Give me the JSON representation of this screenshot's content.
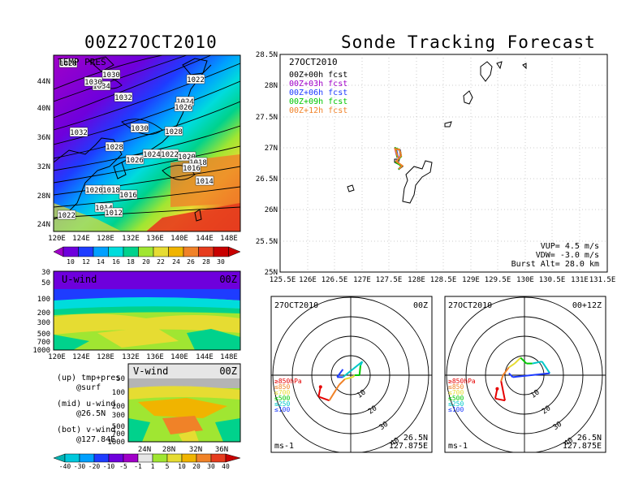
{
  "left_title": "00Z27OCT2010",
  "right_title": "Sonde Tracking Forecast",
  "temp_panel": {
    "label": "TEMP PRES",
    "y_ticks": [
      "44N",
      "40N",
      "36N",
      "32N",
      "28N",
      "24N"
    ],
    "x_ticks": [
      "120E",
      "124E",
      "128E",
      "132E",
      "136E",
      "140E",
      "144E",
      "148E"
    ],
    "colorbar": [
      "10",
      "12",
      "14",
      "16",
      "18",
      "20",
      "22",
      "24",
      "26",
      "28",
      "30"
    ],
    "colorbar_colors": [
      "#a000c8",
      "#6e00dc",
      "#1e3cff",
      "#00a0ff",
      "#00dcdc",
      "#00d28c",
      "#a0e632",
      "#e6dc32",
      "#f0b400",
      "#f08228",
      "#e63c1e",
      "#c80000"
    ],
    "isobar_labels": [
      "1028",
      "1030",
      "1034",
      "1030",
      "1032",
      "1022",
      "1032",
      "1030",
      "1024",
      "1026",
      "1028",
      "1028",
      "1026",
      "1024",
      "1022",
      "1020",
      "1018",
      "1016",
      "1014",
      "1020",
      "1018",
      "1016",
      "1014",
      "1012",
      "1022"
    ]
  },
  "uwind_panel": {
    "label": "U-wind",
    "time": "00Z",
    "y_ticks": [
      "30",
      "50",
      "100",
      "200",
      "300",
      "500",
      "700",
      "1000"
    ],
    "x_ticks": [
      "120E",
      "124E",
      "128E",
      "132E",
      "136E",
      "140E",
      "144E",
      "148E"
    ]
  },
  "vwind_panel": {
    "label": "V-wind",
    "time": "00Z",
    "y_ticks": [
      "50",
      "100",
      "200",
      "300",
      "500",
      "700",
      "1000"
    ],
    "x_ticks": [
      "24N",
      "28N",
      "32N",
      "36N"
    ],
    "colorbar": [
      "-40",
      "-30",
      "-20",
      "-10",
      "-5",
      "-1",
      "1",
      "5",
      "10",
      "20",
      "30",
      "40"
    ],
    "colorbar_colors": [
      "#00b4b4",
      "#00c8dc",
      "#00a0ff",
      "#1e3cff",
      "#6e00dc",
      "#a000c8",
      "#e6e6e6",
      "#a0e632",
      "#e6dc32",
      "#f0b400",
      "#f08228",
      "#e63c1e",
      "#c80000"
    ]
  },
  "legend_text": {
    "up": "(up) tmp+pres",
    "up2": "@surf",
    "mid": "(mid) u-wind",
    "mid2": "@26.5N",
    "bot": "(bot) v-wind",
    "bot2": "@127.84E"
  },
  "map_panel": {
    "date": "27OCT2010",
    "y_ticks": [
      "28.5N",
      "28N",
      "27.5N",
      "27N",
      "26.5N",
      "26N",
      "25.5N",
      "25N"
    ],
    "x_ticks": [
      "125.5E",
      "126E",
      "126.5E",
      "127E",
      "127.5E",
      "128E",
      "128.5E",
      "129E",
      "129.5E",
      "130E",
      "130.5E",
      "131E",
      "131.5E"
    ],
    "forecasts": [
      {
        "label": "00Z+00h fcst",
        "color": "#000000"
      },
      {
        "label": "00Z+03h fcst",
        "color": "#a000c8"
      },
      {
        "label": "00Z+06h fcst",
        "color": "#1e3cff"
      },
      {
        "label": "00Z+09h fcst",
        "color": "#00c800"
      },
      {
        "label": "00Z+12h fcst",
        "color": "#f08228"
      }
    ],
    "vup": "VUP= 4.5 m/s",
    "vdw": "VDW= -3.0 m/s",
    "burst": "Burst Alt= 28.0 km"
  },
  "hodo1": {
    "date": "27OCT2010",
    "time": "00Z",
    "lat": "26.5N",
    "lon": "127.875E",
    "unit": "ms-1"
  },
  "hodo2": {
    "date": "27OCT2010",
    "time": "00+12Z",
    "lat": "26.5N",
    "lon": "127.875E",
    "unit": "ms-1"
  },
  "hodo_levels": [
    {
      "label": "≥850hPa",
      "color": "#e60000"
    },
    {
      "label": "≤850",
      "color": "#f08228"
    },
    {
      "label": "≤700",
      "color": "#e6dc32"
    },
    {
      "label": "≤500",
      "color": "#00c800"
    },
    {
      "label": "≤250",
      "color": "#00c8c8"
    },
    {
      "label": "≤100",
      "color": "#1e3cff"
    }
  ],
  "ring_labels": [
    "10",
    "20",
    "30",
    "40"
  ],
  "chart_data": [
    {
      "type": "heatmap",
      "title": "00Z27OCT2010",
      "subtitle": "TEMP PRES",
      "xlabel": "",
      "ylabel": "",
      "x_ticks": [
        "120E",
        "124E",
        "128E",
        "132E",
        "136E",
        "140E",
        "144E",
        "148E"
      ],
      "y_ticks": [
        "24N",
        "28N",
        "32N",
        "36N",
        "40N",
        "44N"
      ],
      "colorbar": [
        10,
        12,
        14,
        16,
        18,
        20,
        22,
        24,
        26,
        28,
        30
      ],
      "contours": [
        1012,
        1014,
        1016,
        1018,
        1020,
        1022,
        1024,
        1026,
        1028,
        1030,
        1032,
        1034
      ]
    },
    {
      "type": "heatmap",
      "title": "U-wind",
      "xlabel": "",
      "ylabel": "",
      "x_ticks": [
        "120E",
        "124E",
        "128E",
        "132E",
        "136E",
        "140E",
        "144E",
        "148E"
      ],
      "y_ticks": [
        30,
        50,
        100,
        200,
        300,
        500,
        700,
        1000
      ]
    },
    {
      "type": "heatmap",
      "title": "V-wind",
      "xlabel": "",
      "ylabel": "",
      "x_ticks": [
        "24N",
        "28N",
        "32N",
        "36N"
      ],
      "y_ticks": [
        50,
        100,
        200,
        300,
        500,
        700,
        1000
      ],
      "colorbar": [
        -40,
        -30,
        -20,
        -10,
        -5,
        -1,
        1,
        5,
        10,
        20,
        30,
        40
      ]
    },
    {
      "type": "line",
      "title": "Sonde Tracking Forecast",
      "xlabel": "",
      "ylabel": "",
      "xlim": [
        125.5,
        131.5
      ],
      "ylim": [
        25,
        28.5
      ],
      "series": [
        {
          "name": "00Z+00h fcst",
          "x": [
            127.66,
            127.62,
            127.7,
            127.72,
            127.63,
            127.74,
            127.68
          ],
          "y": [
            26.85,
            26.99,
            26.96,
            26.86,
            26.78,
            26.7,
            26.66
          ]
        },
        {
          "name": "00Z+03h fcst",
          "x": [
            127.65,
            127.61,
            127.69,
            127.71,
            127.62,
            127.73,
            127.67
          ],
          "y": [
            26.84,
            26.98,
            26.97,
            26.87,
            26.77,
            26.71,
            26.65
          ]
        },
        {
          "name": "00Z+06h fcst",
          "x": [
            127.66,
            127.63,
            127.7,
            127.71,
            127.63,
            127.73,
            127.68
          ],
          "y": [
            26.85,
            26.98,
            26.96,
            26.86,
            26.78,
            26.71,
            26.66
          ]
        },
        {
          "name": "00Z+09h fcst",
          "x": [
            127.65,
            127.62,
            127.69,
            127.72,
            127.62,
            127.73,
            127.67
          ],
          "y": [
            26.84,
            26.99,
            26.97,
            26.86,
            26.77,
            26.7,
            26.65
          ]
        },
        {
          "name": "00Z+12h fcst",
          "x": [
            127.66,
            127.61,
            127.69,
            127.72,
            127.63,
            127.74,
            127.68
          ],
          "y": [
            26.85,
            26.98,
            26.97,
            26.87,
            26.78,
            26.71,
            26.66
          ]
        }
      ]
    },
    {
      "type": "line",
      "title": "27OCT2010 00Z",
      "xlabel": "ms-1",
      "ylabel": "",
      "rings": [
        10,
        20,
        30,
        40
      ],
      "series": [
        {
          "name": "hodograph",
          "u": [
            -15.5,
            -16.5,
            -11,
            -6,
            -3,
            1,
            2,
            4.5,
            5,
            6,
            -4,
            -7,
            -4
          ],
          "v": [
            -6,
            -11,
            -13,
            -5,
            -2,
            -1,
            0,
            0,
            5,
            7,
            -1,
            -1,
            3
          ]
        }
      ]
    },
    {
      "type": "line",
      "title": "27OCT2010 00+12Z",
      "xlabel": "ms-1",
      "ylabel": "",
      "rings": [
        10,
        20,
        30,
        40
      ],
      "series": [
        {
          "name": "hodograph",
          "u": [
            -14,
            -15,
            -10,
            -12,
            -11,
            -8,
            -5,
            -2,
            1,
            4,
            9,
            13,
            -6,
            -8
          ],
          "v": [
            -7,
            -12,
            -13,
            -3,
            0,
            4,
            6,
            9,
            6,
            6,
            7,
            1,
            -1,
            1
          ]
        }
      ]
    }
  ]
}
